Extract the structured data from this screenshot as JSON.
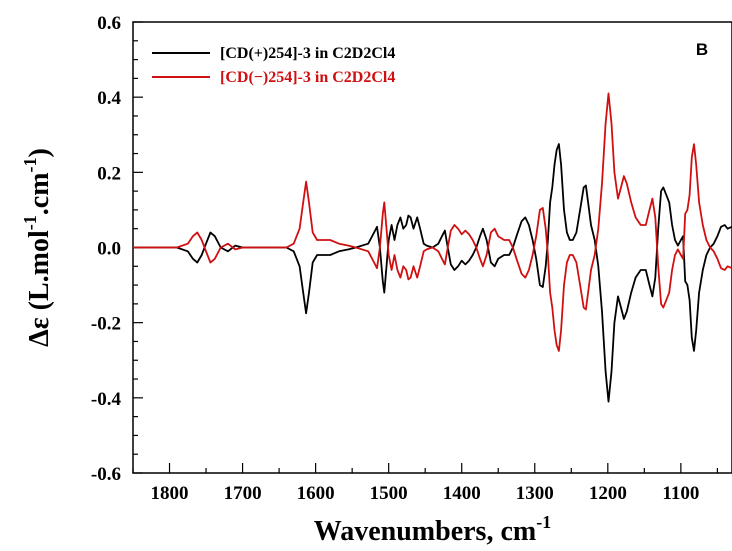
{
  "chart_data": {
    "type": "line",
    "panel_label": "B",
    "xlabel": "Wavenumbers, cm",
    "xlabel_sup": "-1",
    "ylabel_parts": [
      "Δε (L.mol",
      "-1",
      ".cm",
      "-1",
      ")"
    ],
    "xlim": [
      1850,
      1030
    ],
    "ylim": [
      -0.6,
      0.6
    ],
    "x_ticks": [
      1800,
      1700,
      1600,
      1500,
      1400,
      1300,
      1200,
      1100
    ],
    "x_tick_labels": [
      "1800",
      "1700",
      "1600",
      "1500",
      "1400",
      "1300",
      "1200",
      "1100"
    ],
    "y_ticks": [
      -0.6,
      -0.4,
      -0.2,
      0.0,
      0.2,
      0.4,
      0.6
    ],
    "y_tick_labels": [
      "-0.6",
      "-0.4",
      "-0.2",
      "0.0",
      "0.2",
      "0.4",
      "0.6"
    ],
    "grid": false,
    "legend_position": "top-left",
    "series": [
      {
        "name": "[CD(+)254]-3 in C2D2Cl4",
        "color": "#000000",
        "points": [
          [
            1850,
            0.0
          ],
          [
            1790,
            0.0
          ],
          [
            1775,
            -0.01
          ],
          [
            1768,
            -0.03
          ],
          [
            1762,
            -0.04
          ],
          [
            1756,
            -0.02
          ],
          [
            1750,
            0.01
          ],
          [
            1744,
            0.04
          ],
          [
            1738,
            0.03
          ],
          [
            1730,
            0.0
          ],
          [
            1720,
            -0.01
          ],
          [
            1710,
            0.005
          ],
          [
            1700,
            0.0
          ],
          [
            1640,
            0.0
          ],
          [
            1630,
            -0.01
          ],
          [
            1622,
            -0.05
          ],
          [
            1617,
            -0.12
          ],
          [
            1613,
            -0.175
          ],
          [
            1609,
            -0.12
          ],
          [
            1604,
            -0.04
          ],
          [
            1598,
            -0.02
          ],
          [
            1590,
            -0.02
          ],
          [
            1580,
            -0.02
          ],
          [
            1568,
            -0.01
          ],
          [
            1555,
            -0.005
          ],
          [
            1545,
            0.0
          ],
          [
            1528,
            0.01
          ],
          [
            1520,
            0.04
          ],
          [
            1516,
            0.055
          ],
          [
            1512,
            0.0
          ],
          [
            1508,
            -0.09
          ],
          [
            1506,
            -0.12
          ],
          [
            1503,
            -0.05
          ],
          [
            1500,
            0.02
          ],
          [
            1496,
            0.06
          ],
          [
            1492,
            0.02
          ],
          [
            1488,
            0.06
          ],
          [
            1484,
            0.08
          ],
          [
            1480,
            0.05
          ],
          [
            1476,
            0.06
          ],
          [
            1473,
            0.085
          ],
          [
            1470,
            0.08
          ],
          [
            1466,
            0.05
          ],
          [
            1461,
            0.08
          ],
          [
            1457,
            0.05
          ],
          [
            1452,
            0.01
          ],
          [
            1448,
            0.005
          ],
          [
            1440,
            0.0
          ],
          [
            1432,
            0.01
          ],
          [
            1427,
            0.03
          ],
          [
            1423,
            0.045
          ],
          [
            1420,
            0.01
          ],
          [
            1415,
            -0.045
          ],
          [
            1410,
            -0.06
          ],
          [
            1405,
            -0.05
          ],
          [
            1400,
            -0.035
          ],
          [
            1395,
            -0.045
          ],
          [
            1390,
            -0.035
          ],
          [
            1385,
            -0.02
          ],
          [
            1380,
            0.0
          ],
          [
            1375,
            0.03
          ],
          [
            1371,
            0.05
          ],
          [
            1366,
            0.02
          ],
          [
            1360,
            -0.04
          ],
          [
            1355,
            -0.05
          ],
          [
            1350,
            -0.03
          ],
          [
            1342,
            -0.02
          ],
          [
            1335,
            -0.02
          ],
          [
            1330,
            0.0
          ],
          [
            1325,
            0.03
          ],
          [
            1318,
            0.07
          ],
          [
            1313,
            0.08
          ],
          [
            1308,
            0.06
          ],
          [
            1303,
            0.02
          ],
          [
            1298,
            -0.03
          ],
          [
            1293,
            -0.1
          ],
          [
            1289,
            -0.105
          ],
          [
            1285,
            -0.05
          ],
          [
            1282,
            0.02
          ],
          [
            1279,
            0.12
          ],
          [
            1276,
            0.16
          ],
          [
            1273,
            0.22
          ],
          [
            1270,
            0.26
          ],
          [
            1267,
            0.275
          ],
          [
            1264,
            0.22
          ],
          [
            1260,
            0.1
          ],
          [
            1256,
            0.04
          ],
          [
            1252,
            0.02
          ],
          [
            1248,
            0.02
          ],
          [
            1243,
            0.04
          ],
          [
            1238,
            0.1
          ],
          [
            1233,
            0.16
          ],
          [
            1230,
            0.165
          ],
          [
            1227,
            0.12
          ],
          [
            1223,
            0.06
          ],
          [
            1218,
            0.02
          ],
          [
            1213,
            -0.05
          ],
          [
            1208,
            -0.17
          ],
          [
            1203,
            -0.33
          ],
          [
            1199,
            -0.41
          ],
          [
            1195,
            -0.33
          ],
          [
            1191,
            -0.2
          ],
          [
            1186,
            -0.13
          ],
          [
            1182,
            -0.16
          ],
          [
            1178,
            -0.19
          ],
          [
            1174,
            -0.17
          ],
          [
            1168,
            -0.12
          ],
          [
            1162,
            -0.08
          ],
          [
            1155,
            -0.06
          ],
          [
            1148,
            -0.06
          ],
          [
            1143,
            -0.1
          ],
          [
            1139,
            -0.13
          ],
          [
            1135,
            -0.08
          ],
          [
            1131,
            0.05
          ],
          [
            1127,
            0.15
          ],
          [
            1124,
            0.16
          ],
          [
            1120,
            0.14
          ],
          [
            1116,
            0.12
          ],
          [
            1112,
            0.06
          ],
          [
            1108,
            0.02
          ],
          [
            1104,
            0.005
          ],
          [
            1100,
            0.02
          ],
          [
            1097,
            0.03
          ],
          [
            1094,
            -0.09
          ],
          [
            1091,
            -0.1
          ],
          [
            1088,
            -0.14
          ],
          [
            1085,
            -0.24
          ],
          [
            1082,
            -0.275
          ],
          [
            1079,
            -0.22
          ],
          [
            1075,
            -0.12
          ],
          [
            1070,
            -0.06
          ],
          [
            1065,
            -0.02
          ],
          [
            1060,
            0.0
          ],
          [
            1055,
            0.01
          ],
          [
            1050,
            0.03
          ],
          [
            1045,
            0.055
          ],
          [
            1040,
            0.06
          ],
          [
            1036,
            0.05
          ],
          [
            1030,
            0.055
          ]
        ]
      },
      {
        "name": "[CD(−)254]-3 in C2D2Cl4",
        "color": "#d01010",
        "points": []
      }
    ]
  }
}
